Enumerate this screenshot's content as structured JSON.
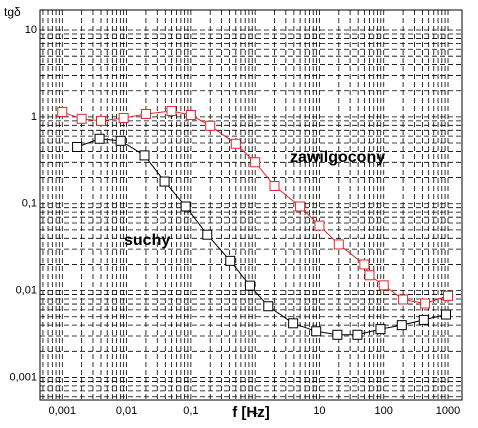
{
  "chart_data": {
    "type": "line",
    "y_label": "tgδ",
    "x_label": "f [Hz]",
    "log_x": true,
    "log_y": true,
    "grid": true,
    "minor_grid": true,
    "xlim": [
      0.00045,
      1650
    ],
    "ylim": [
      0.00055,
      17
    ],
    "xticks": [
      {
        "value": 0.001,
        "label": "0,001"
      },
      {
        "value": 0.01,
        "label": "0,01"
      },
      {
        "value": 0.1,
        "label": "0,1"
      },
      1,
      10,
      100,
      1000
    ],
    "yticks": [
      {
        "value": 0.001,
        "label": "0,001"
      },
      {
        "value": 0.01,
        "label": "0,01"
      },
      {
        "value": 0.1,
        "label": "0,1"
      },
      1,
      10
    ],
    "series": [
      {
        "name": "zawilgocony",
        "color": "#e8262b",
        "x": [
          0.001,
          0.002,
          0.004,
          0.009,
          0.02,
          0.05,
          0.1,
          0.2,
          0.5,
          1,
          2,
          5,
          10,
          20,
          50,
          60,
          100,
          200,
          440,
          1000
        ],
        "values": [
          1.14,
          0.95,
          0.9,
          0.97,
          1.08,
          1.17,
          1.05,
          0.79,
          0.49,
          0.3,
          0.16,
          0.093,
          0.056,
          0.034,
          0.02,
          0.015,
          0.0115,
          0.0079,
          0.0071,
          0.0087
        ]
      },
      {
        "name": "suchy",
        "color": "#000000",
        "x": [
          0.0017,
          0.0038,
          0.0081,
          0.019,
          0.039,
          0.083,
          0.18,
          0.41,
          0.83,
          1.6,
          3.9,
          8.9,
          19,
          39,
          89,
          191,
          420,
          930
        ],
        "values": [
          0.45,
          0.56,
          0.53,
          0.36,
          0.18,
          0.093,
          0.044,
          0.022,
          0.0114,
          0.0066,
          0.0042,
          0.0034,
          0.0031,
          0.0031,
          0.0036,
          0.004,
          0.0046,
          0.0053
        ]
      }
    ]
  }
}
